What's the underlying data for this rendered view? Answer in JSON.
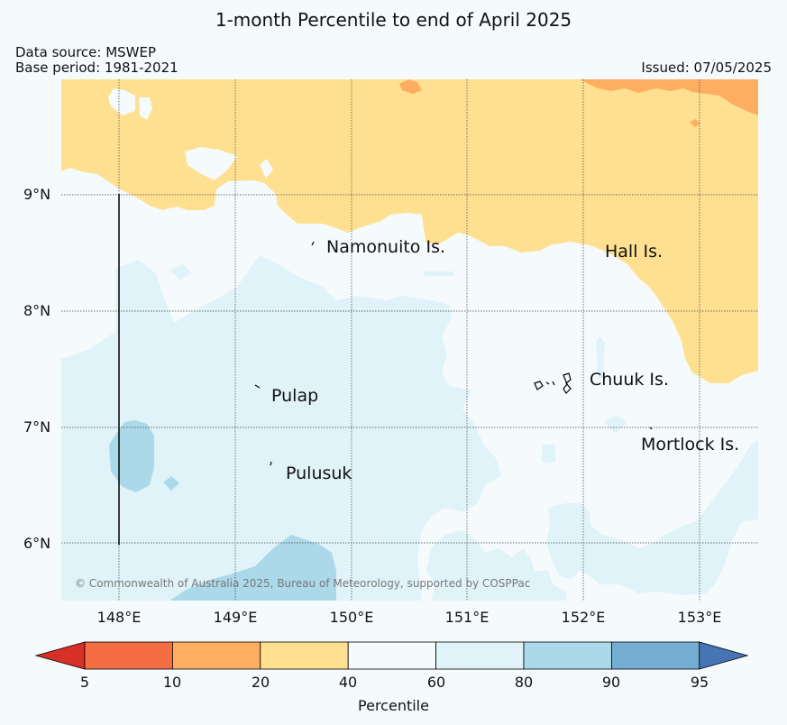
{
  "map": {
    "title": "1-month Percentile to end of April 2025",
    "data_source": "Data source: MSWEP",
    "base_period": "Base period: 1981-2021",
    "issued": "Issued: 07/05/2025",
    "copyright": "© Commonwealth of Australia 2025, Bureau of Meteorology, supported by COSPPac"
  },
  "axes": {
    "lat_labels": [
      "9°N",
      "8°N",
      "7°N",
      "6°N"
    ],
    "lon_labels": [
      "148°E",
      "149°E",
      "150°E",
      "151°E",
      "152°E",
      "153°E"
    ]
  },
  "places": {
    "namonuito": "Namonuito Is.",
    "hall": "Hall Is.",
    "pulap": "Pulap",
    "chuuk": "Chuuk Is.",
    "mortlock": "Mortlock Is.",
    "pulusuk": "Pulusuk"
  },
  "colorbar": {
    "label": "Percentile",
    "ticks": [
      "5",
      "10",
      "20",
      "40",
      "60",
      "80",
      "90",
      "95"
    ],
    "colors": {
      "under5": "#d73027",
      "p5_10": "#f46d43",
      "p10_20": "#fdae61",
      "p20_40": "#fee090",
      "p40_60": "#f5fafd",
      "p60_80": "#e0f3f8",
      "p80_90": "#abd9e9",
      "p90_95": "#74add1",
      "over95": "#4575b4"
    }
  }
}
